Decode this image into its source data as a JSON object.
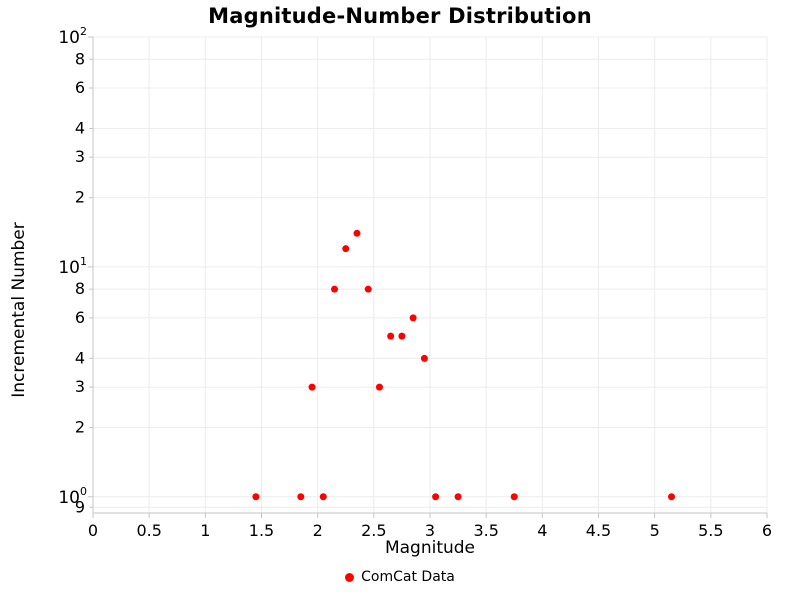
{
  "colors": {
    "point": "#ff0000",
    "grid": "#ececec",
    "axis": "#c6c6c6",
    "text": "#000000",
    "background": "#ffffff"
  },
  "chart_data": {
    "type": "scatter",
    "title": "Magnitude-Number Distribution",
    "xlabel": "Magnitude",
    "ylabel": "Incremental Number",
    "x_scale": "linear",
    "y_scale": "log",
    "xlim": [
      0,
      6
    ],
    "ylim": [
      0.85,
      100
    ],
    "grid": true,
    "legend_position": "bottom",
    "series": [
      {
        "name": "ComCat Data",
        "color": "#ff0000",
        "marker": "circle",
        "x": [
          1.45,
          1.85,
          1.95,
          2.05,
          2.15,
          2.25,
          2.35,
          2.45,
          2.55,
          2.65,
          2.75,
          2.85,
          2.95,
          3.05,
          3.25,
          3.75,
          5.15
        ],
        "y": [
          1,
          1,
          3,
          1,
          8,
          12,
          14,
          8,
          3,
          5,
          5,
          6,
          4,
          1,
          1,
          1,
          1
        ]
      }
    ],
    "x_ticks": [
      {
        "value": 0,
        "label": "0"
      },
      {
        "value": 0.5,
        "label": "0.5"
      },
      {
        "value": 1,
        "label": "1"
      },
      {
        "value": 1.5,
        "label": "1.5"
      },
      {
        "value": 2,
        "label": "2"
      },
      {
        "value": 2.5,
        "label": "2.5"
      },
      {
        "value": 3,
        "label": "3"
      },
      {
        "value": 3.5,
        "label": "3.5"
      },
      {
        "value": 4,
        "label": "4"
      },
      {
        "value": 4.5,
        "label": "4.5"
      },
      {
        "value": 5,
        "label": "5"
      },
      {
        "value": 5.5,
        "label": "5.5"
      },
      {
        "value": 6,
        "label": "6"
      }
    ],
    "y_major_ticks": [
      {
        "value": 1,
        "base": "10",
        "exp": "0"
      },
      {
        "value": 10,
        "base": "10",
        "exp": "1"
      },
      {
        "value": 100,
        "base": "10",
        "exp": "2"
      }
    ],
    "y_minor_ticks": [
      {
        "value": 0.9,
        "label": "9"
      },
      {
        "value": 2,
        "label": "2"
      },
      {
        "value": 3,
        "label": "3"
      },
      {
        "value": 4,
        "label": "4"
      },
      {
        "value": 6,
        "label": "6"
      },
      {
        "value": 8,
        "label": "8"
      },
      {
        "value": 20,
        "label": "2"
      },
      {
        "value": 30,
        "label": "3"
      },
      {
        "value": 40,
        "label": "4"
      },
      {
        "value": 60,
        "label": "6"
      },
      {
        "value": 80,
        "label": "8"
      }
    ]
  }
}
